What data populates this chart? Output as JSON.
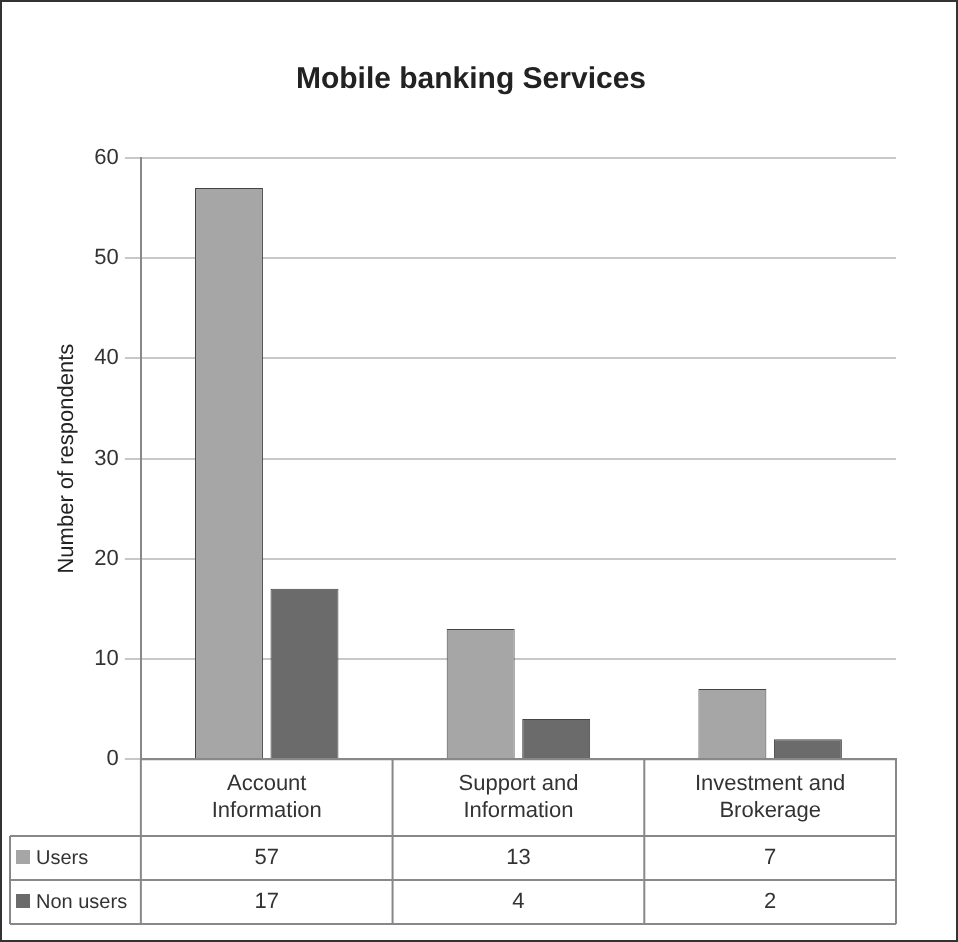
{
  "chart_data": {
    "type": "bar",
    "title": "Mobile banking Services",
    "ylabel": "Number of respondents",
    "categories": [
      "Account Information",
      "Support and Information",
      "Investment and Brokerage"
    ],
    "series": [
      {
        "name": "Users",
        "color": "#a6a6a6",
        "values": [
          57,
          13,
          7
        ]
      },
      {
        "name": "Non users",
        "color": "#6b6b6b",
        "values": [
          17,
          4,
          2
        ]
      }
    ],
    "ylim": [
      0,
      60
    ],
    "yticks": [
      0,
      10,
      20,
      30,
      40,
      50,
      60
    ],
    "grid": "y",
    "data_labels": true,
    "legend": "bottom left"
  }
}
